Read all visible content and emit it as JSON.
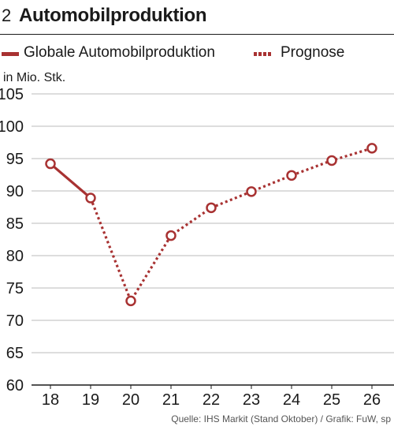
{
  "header": {
    "number": "2",
    "title": "Automobilproduktion"
  },
  "legend": {
    "actual": "Globale Automobilproduktion",
    "forecast": "Prognose"
  },
  "colors": {
    "series": "#a83232",
    "grid": "#bbbbbb",
    "axis": "#1a1a1a"
  },
  "source": "Quelle: IHS Markit (Stand Oktober) / Grafik: FuW, sp",
  "chart_data": {
    "type": "line",
    "ylabel": "in Mio. Stk.",
    "categories": [
      "18",
      "19",
      "20",
      "21",
      "22",
      "23",
      "24",
      "25",
      "26"
    ],
    "ylim": [
      60,
      105
    ],
    "yticks": [
      60,
      65,
      70,
      75,
      80,
      85,
      90,
      95,
      100,
      105
    ],
    "grid": true,
    "series": [
      {
        "name": "Globale Automobilproduktion",
        "style": "solid",
        "x": [
          "18",
          "19"
        ],
        "values": [
          94.2,
          88.9
        ]
      },
      {
        "name": "Prognose",
        "style": "dotted",
        "x": [
          "19",
          "20",
          "21",
          "22",
          "23",
          "24",
          "25",
          "26"
        ],
        "values": [
          88.9,
          73.0,
          83.1,
          87.4,
          89.9,
          92.4,
          94.7,
          96.6
        ]
      }
    ]
  }
}
